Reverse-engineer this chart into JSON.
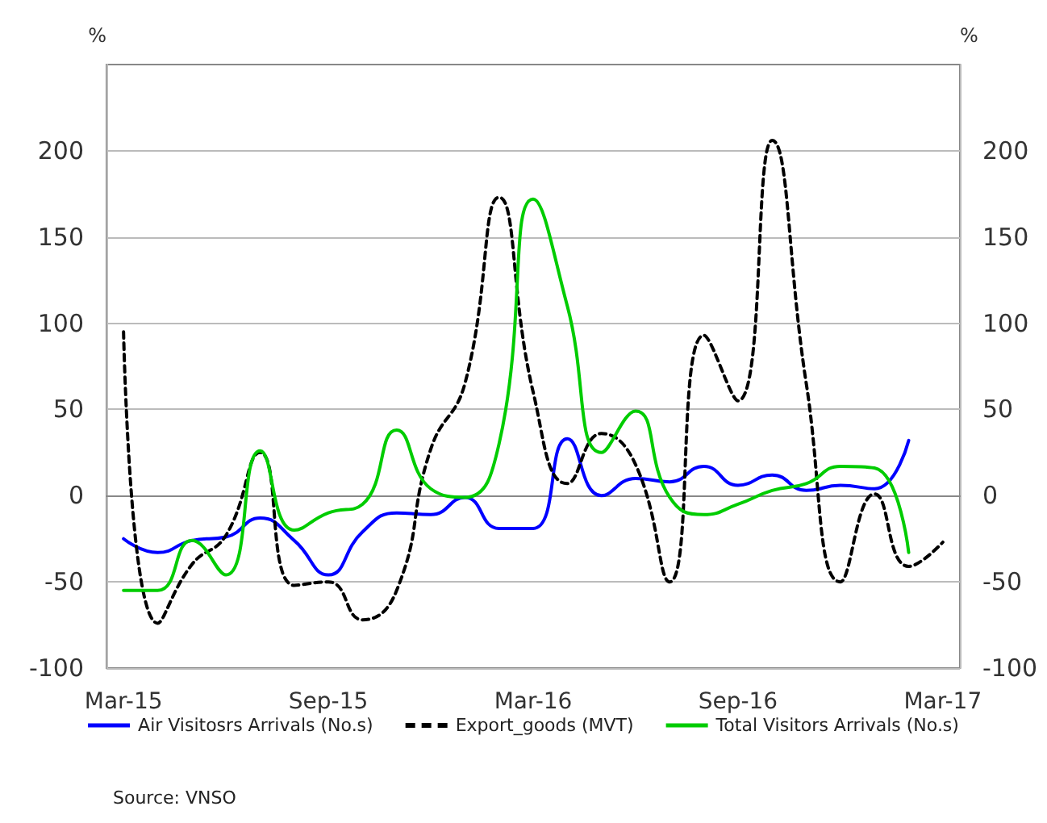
{
  "chart_data": {
    "type": "line",
    "ylabel": "%",
    "y2label": "%",
    "categories": [
      "Mar-15",
      null,
      null,
      null,
      null,
      null,
      "Sep-15",
      null,
      null,
      null,
      null,
      null,
      "Mar-16",
      null,
      null,
      null,
      null,
      null,
      "Sep-16",
      null,
      null,
      null,
      null,
      null,
      "Mar-17"
    ],
    "series": [
      {
        "name": "Air Visitosrs Arrivals (No.s)",
        "color": "#0000ff",
        "line_style": "solid",
        "values": [
          -25,
          -33,
          -26,
          -24,
          -13,
          -26,
          -46,
          -21,
          -10,
          -11,
          -1,
          -19,
          -19,
          33,
          0,
          10,
          8,
          17,
          6,
          12,
          3,
          6,
          4,
          32,
          null
        ]
      },
      {
        "name": "Export_goods (MVT)",
        "color": "#000000",
        "line_style": "dashed",
        "values": [
          95,
          -74,
          -40,
          -23,
          25,
          -52,
          -50,
          -72,
          -55,
          27,
          65,
          173,
          60,
          7,
          36,
          18,
          -50,
          93,
          55,
          206,
          65,
          -50,
          1,
          -41,
          -27
        ]
      },
      {
        "name": "Total Visitors Arrivals (No.s)",
        "color": "#00cc00",
        "line_style": "solid",
        "values": [
          -55,
          -55,
          -26,
          -46,
          26,
          -20,
          -10,
          -5,
          38,
          4,
          -1,
          30,
          172,
          110,
          25,
          49,
          -1,
          -11,
          -5,
          3,
          7,
          17,
          16,
          -33,
          null
        ]
      }
    ],
    "ylim": [
      -100,
      250
    ],
    "yticks": [
      -100,
      -50,
      0,
      50,
      100,
      150,
      200
    ],
    "y2lim": [
      -100,
      250
    ],
    "y2ticks": [
      -100,
      -50,
      0,
      50,
      100,
      150,
      200
    ],
    "grid": "y",
    "legend": "bottom",
    "marker": "none",
    "annotations": [
      "Source: VNSO"
    ]
  }
}
